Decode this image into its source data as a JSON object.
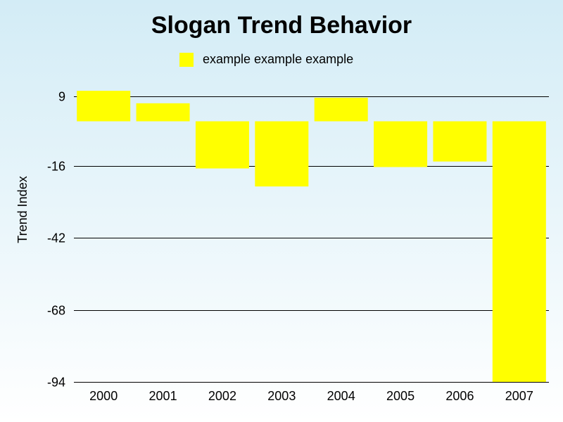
{
  "chart_data": {
    "type": "bar",
    "title": "Slogan Trend Behavior",
    "xlabel": "",
    "ylabel": "Trend Index",
    "categories": [
      "2000",
      "2001",
      "2002",
      "2003",
      "2004",
      "2005",
      "2006",
      "2007"
    ],
    "series": [
      {
        "name": "example example example",
        "color": "#ffff00",
        "values": [
          11,
          6.5,
          -17,
          -23.5,
          8.5,
          -16.5,
          -14.5,
          -94
        ]
      }
    ],
    "baseline": 0,
    "ylim": [
      -94,
      9
    ],
    "yticks": [
      "9",
      "-16",
      "-42",
      "-68",
      "-94"
    ],
    "ytick_values": [
      9,
      -16,
      -42,
      -68,
      -94
    ],
    "grid": true,
    "legend_position": "top-center"
  }
}
